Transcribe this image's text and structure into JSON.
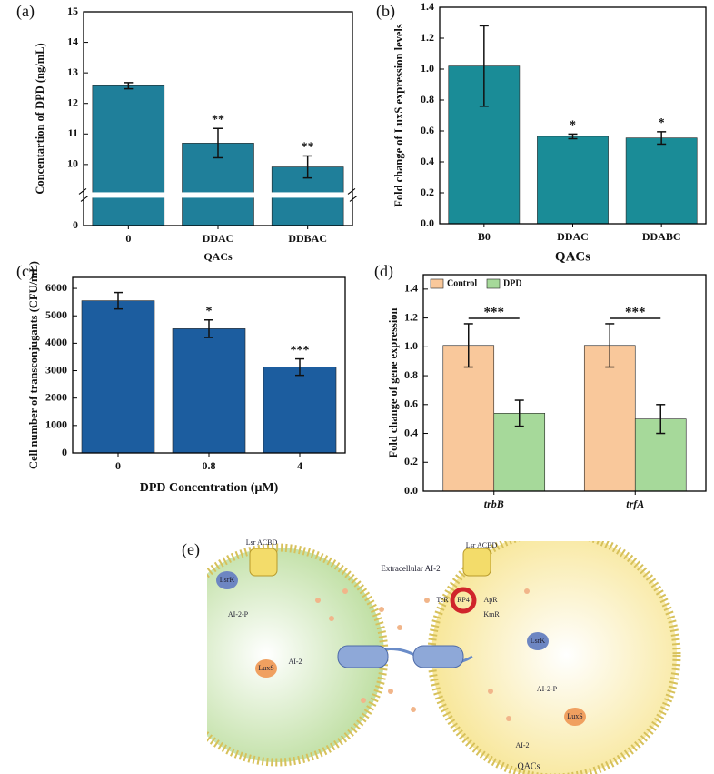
{
  "chart_data": [
    {
      "type": "bar",
      "panel_label": "(a)",
      "categories": [
        "0",
        "DDAC",
        "DDBAC"
      ],
      "values": [
        12.58,
        10.7,
        9.92
      ],
      "errors": [
        0.1,
        0.48,
        0.36
      ],
      "annotations": [
        null,
        "**",
        "**"
      ],
      "color": "#1f7f9a",
      "xlabel": "QACs",
      "ylabel": "Concentartion of DPD (ng/mL)",
      "ylim": [
        0,
        15
      ],
      "yticks": [
        0,
        10,
        11,
        12,
        13,
        14,
        15
      ],
      "axis_break": [
        1,
        9
      ]
    },
    {
      "type": "bar",
      "panel_label": "(b)",
      "categories": [
        "B0",
        "DDAC",
        "DDABC"
      ],
      "values": [
        1.02,
        0.565,
        0.555
      ],
      "errors": [
        0.26,
        0.015,
        0.04
      ],
      "annotations": [
        null,
        "*",
        "*"
      ],
      "color": "#1a8c97",
      "xlabel": "QACs",
      "ylabel": "Fold change of LuxS expression levels",
      "ylim": [
        0,
        1.4
      ],
      "yticks": [
        {
          "value": 0,
          "label": "0.0"
        },
        {
          "value": 0.2,
          "label": "0.2"
        },
        {
          "value": 0.4,
          "label": "0.4"
        },
        {
          "value": 0.6,
          "label": "0.6"
        },
        {
          "value": 0.8,
          "label": "0.8"
        },
        {
          "value": 1,
          "label": "1.0"
        },
        {
          "value": 1.2,
          "label": "1.2"
        },
        {
          "value": 1.4,
          "label": "1.4"
        }
      ]
    },
    {
      "type": "bar",
      "panel_label": "(c)",
      "categories": [
        "0",
        "0.8",
        "4"
      ],
      "values": [
        5550,
        4530,
        3130
      ],
      "errors": [
        300,
        320,
        300
      ],
      "annotations": [
        null,
        "*",
        "***"
      ],
      "color": "#1c5d9f",
      "xlabel": "DPD Concentration (μM)",
      "ylabel": "Cell number of transconjugants (CFU/mL)",
      "ylim": [
        0,
        6400
      ],
      "yticks": [
        0,
        1000,
        2000,
        3000,
        4000,
        5000,
        6000
      ]
    },
    {
      "type": "bar",
      "panel_label": "(d)",
      "categories": [
        "trbB",
        "trfA"
      ],
      "series": [
        {
          "name": "Control",
          "color": "#f9c89b",
          "values": [
            1.01,
            1.01
          ],
          "errors": [
            0.15,
            0.15
          ]
        },
        {
          "name": "DPD",
          "color": "#a6d99a",
          "values": [
            0.54,
            0.5
          ],
          "errors": [
            0.09,
            0.1
          ]
        }
      ],
      "annotations": [
        "***",
        "***"
      ],
      "legend": "upper left",
      "ylabel": "Fold change of gene expression",
      "ylim": [
        0,
        1.5
      ],
      "yticks": [
        {
          "value": 0,
          "label": "0.0"
        },
        {
          "value": 0.2,
          "label": "0.2"
        },
        {
          "value": 0.4,
          "label": "0.4"
        },
        {
          "value": 0.6,
          "label": "0.6"
        },
        {
          "value": 0.8,
          "label": "0.8"
        },
        {
          "value": 1,
          "label": "1.0"
        },
        {
          "value": 1.2,
          "label": "1.2"
        },
        {
          "value": 1.4,
          "label": "1.4"
        }
      ]
    }
  ],
  "diagram": {
    "panel_label": "(e)",
    "labels": [
      "Lsr ACBD",
      "LsrK",
      "AI-2-P",
      "LuxS",
      "AI-2",
      "Extracellular AI-2",
      "Lsr ACBD",
      "LsrK",
      "AI-2-P",
      "LuxS",
      "AI-2",
      "TcR",
      "ApR",
      "KmR",
      "RP4",
      "QACs"
    ]
  }
}
